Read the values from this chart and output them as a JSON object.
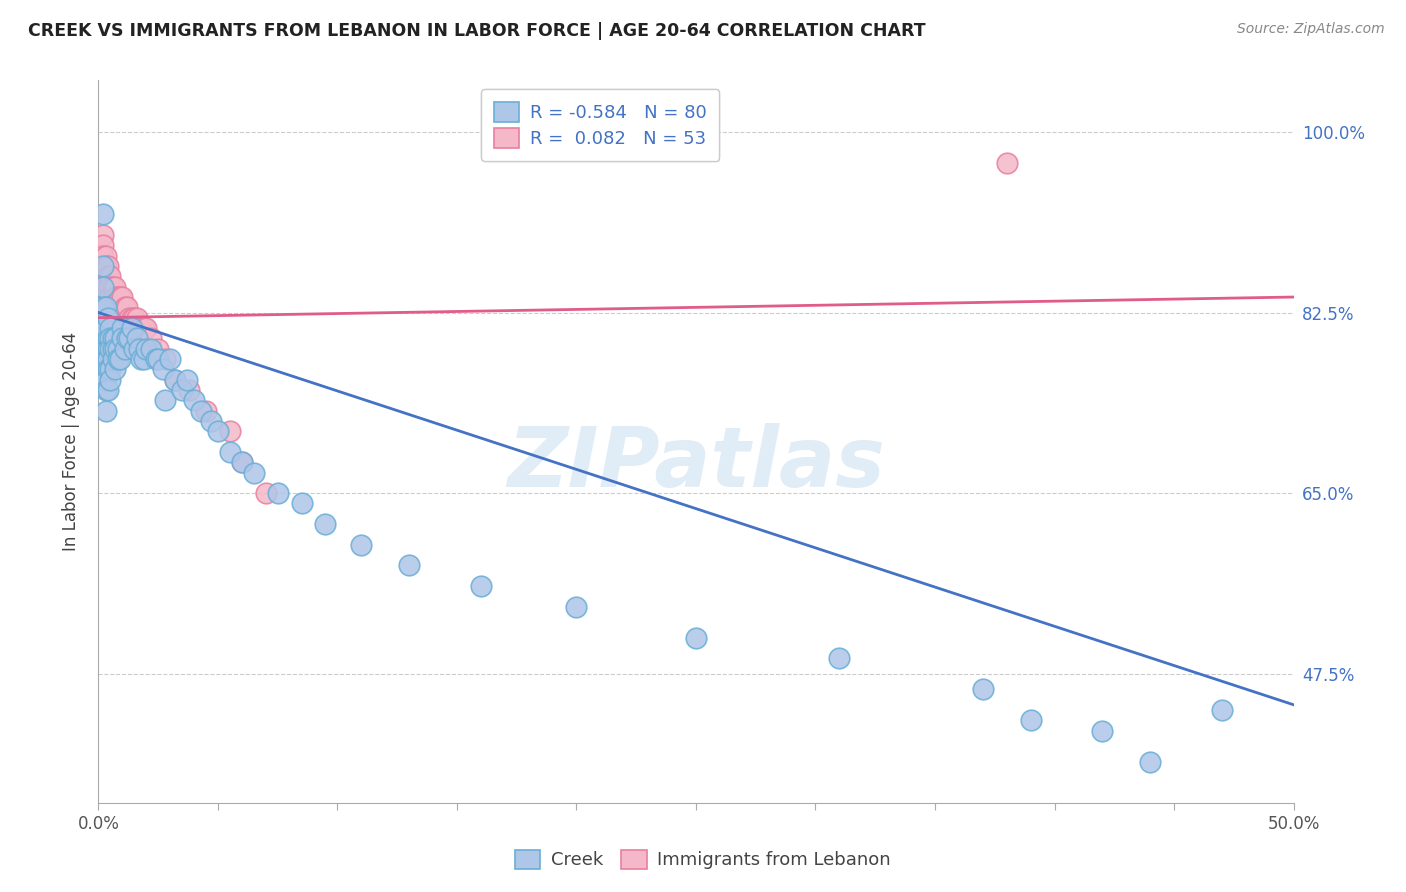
{
  "title": "CREEK VS IMMIGRANTS FROM LEBANON IN LABOR FORCE | AGE 20-64 CORRELATION CHART",
  "source": "Source: ZipAtlas.com",
  "ylabel": "In Labor Force | Age 20-64",
  "ylabel_ticks": [
    "100.0%",
    "82.5%",
    "65.0%",
    "47.5%"
  ],
  "ylabel_tick_vals": [
    1.0,
    0.825,
    0.65,
    0.475
  ],
  "xmin": 0.0,
  "xmax": 0.5,
  "ymin": 0.35,
  "ymax": 1.05,
  "creek_color": "#aec6e8",
  "creek_edge_color": "#6aaed6",
  "lebanon_color": "#f4b8c8",
  "lebanon_edge_color": "#e87fa0",
  "creek_R": -0.584,
  "creek_N": 80,
  "lebanon_R": 0.082,
  "lebanon_N": 53,
  "trend_creek_color": "#4472c4",
  "trend_lebanon_color": "#e05c8a",
  "watermark_text": "ZIPatlas",
  "creek_legend_label": "R = -0.584   N = 80",
  "lebanon_legend_label": "R =  0.082   N = 53",
  "creek_points_x": [
    0.001,
    0.001,
    0.001,
    0.002,
    0.002,
    0.002,
    0.002,
    0.002,
    0.002,
    0.002,
    0.002,
    0.003,
    0.003,
    0.003,
    0.003,
    0.003,
    0.003,
    0.003,
    0.004,
    0.004,
    0.004,
    0.004,
    0.004,
    0.004,
    0.005,
    0.005,
    0.005,
    0.005,
    0.005,
    0.006,
    0.006,
    0.006,
    0.007,
    0.007,
    0.007,
    0.008,
    0.008,
    0.009,
    0.01,
    0.01,
    0.011,
    0.012,
    0.013,
    0.014,
    0.015,
    0.016,
    0.017,
    0.018,
    0.019,
    0.02,
    0.022,
    0.024,
    0.025,
    0.027,
    0.028,
    0.03,
    0.032,
    0.035,
    0.037,
    0.04,
    0.043,
    0.047,
    0.05,
    0.055,
    0.06,
    0.065,
    0.075,
    0.085,
    0.095,
    0.11,
    0.13,
    0.16,
    0.2,
    0.25,
    0.31,
    0.37,
    0.39,
    0.42,
    0.44,
    0.47
  ],
  "creek_points_y": [
    0.8,
    0.79,
    0.78,
    0.92,
    0.87,
    0.85,
    0.83,
    0.81,
    0.8,
    0.79,
    0.76,
    0.83,
    0.81,
    0.79,
    0.78,
    0.76,
    0.75,
    0.73,
    0.82,
    0.8,
    0.79,
    0.78,
    0.77,
    0.75,
    0.81,
    0.8,
    0.79,
    0.77,
    0.76,
    0.8,
    0.79,
    0.78,
    0.8,
    0.79,
    0.77,
    0.79,
    0.78,
    0.78,
    0.81,
    0.8,
    0.79,
    0.8,
    0.8,
    0.81,
    0.79,
    0.8,
    0.79,
    0.78,
    0.78,
    0.79,
    0.79,
    0.78,
    0.78,
    0.77,
    0.74,
    0.78,
    0.76,
    0.75,
    0.76,
    0.74,
    0.73,
    0.72,
    0.71,
    0.69,
    0.68,
    0.67,
    0.65,
    0.64,
    0.62,
    0.6,
    0.58,
    0.56,
    0.54,
    0.51,
    0.49,
    0.46,
    0.43,
    0.42,
    0.39,
    0.44
  ],
  "lebanon_points_x": [
    0.001,
    0.001,
    0.001,
    0.002,
    0.002,
    0.002,
    0.002,
    0.002,
    0.002,
    0.002,
    0.002,
    0.002,
    0.003,
    0.003,
    0.003,
    0.003,
    0.003,
    0.004,
    0.004,
    0.004,
    0.004,
    0.004,
    0.005,
    0.005,
    0.005,
    0.005,
    0.006,
    0.006,
    0.007,
    0.007,
    0.008,
    0.009,
    0.01,
    0.011,
    0.012,
    0.013,
    0.014,
    0.015,
    0.016,
    0.017,
    0.018,
    0.019,
    0.02,
    0.022,
    0.025,
    0.028,
    0.032,
    0.038,
    0.045,
    0.055,
    0.06,
    0.07,
    0.38
  ],
  "lebanon_points_y": [
    0.88,
    0.87,
    0.86,
    0.9,
    0.89,
    0.88,
    0.87,
    0.86,
    0.85,
    0.84,
    0.83,
    0.82,
    0.88,
    0.87,
    0.86,
    0.85,
    0.84,
    0.87,
    0.86,
    0.85,
    0.84,
    0.83,
    0.86,
    0.85,
    0.84,
    0.83,
    0.85,
    0.84,
    0.85,
    0.84,
    0.84,
    0.84,
    0.84,
    0.83,
    0.83,
    0.82,
    0.82,
    0.82,
    0.82,
    0.81,
    0.81,
    0.81,
    0.81,
    0.8,
    0.79,
    0.78,
    0.76,
    0.75,
    0.73,
    0.71,
    0.68,
    0.65,
    0.97
  ],
  "trend_creek_x0": 0.0,
  "trend_creek_y0": 0.825,
  "trend_creek_x1": 0.5,
  "trend_creek_y1": 0.445,
  "trend_lebanon_x0": 0.0,
  "trend_lebanon_y0": 0.82,
  "trend_lebanon_x1": 0.5,
  "trend_lebanon_y1": 0.84
}
